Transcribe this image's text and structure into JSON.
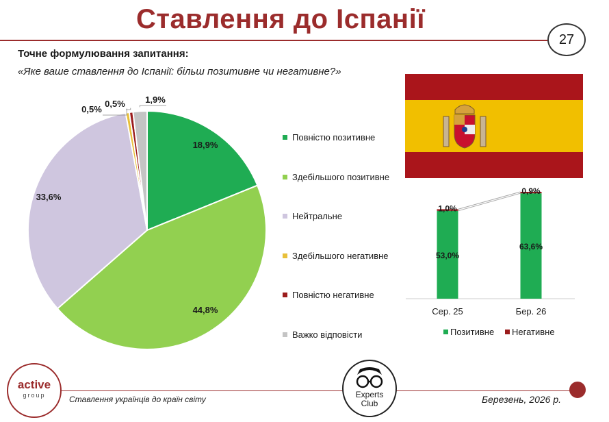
{
  "header": {
    "title": "Ставлення до Іспанії",
    "page_number": "27"
  },
  "question": {
    "label": "Точне формулювання запитання:",
    "text": "«Яке ваше ставлення до Іспанії: більш позитивне чи негативне?»"
  },
  "footer": {
    "left_text": "Ставлення українців до країн світу",
    "right_text": "Березень, 2026 р.",
    "logo_active": {
      "word": "active",
      "sub": "group"
    },
    "logo_experts": {
      "line1": "Experts",
      "line2": "Club"
    }
  },
  "colors": {
    "accent": "#9b2c2c",
    "fully_positive": "#1fac53",
    "mostly_positive": "#92d050",
    "neutral": "#cfc6df",
    "mostly_negative": "#e8c03a",
    "fully_negative": "#9b1c1c",
    "hard_to_say": "#c4c4c4",
    "flag_red": "#aa151b",
    "flag_yellow": "#f1bf00"
  },
  "chart_data": [
    {
      "type": "pie",
      "categories": [
        "Повністю позитивне",
        "Здебільшого позитивне",
        "Нейтральне",
        "Здебільшого негативне",
        "Повністю негативне",
        "Важко відповісти"
      ],
      "values": [
        18.9,
        44.8,
        33.6,
        0.5,
        0.5,
        1.9
      ],
      "data_labels": [
        "18,9%",
        "44,8%",
        "33,6%",
        "0,5%",
        "0,5%",
        "1,9%"
      ],
      "legend_position": "right"
    },
    {
      "type": "bar",
      "stacked": true,
      "categories": [
        "Сер. 25",
        "Бер. 26"
      ],
      "series": [
        {
          "name": "Позитивне",
          "values": [
            53.0,
            63.6
          ],
          "labels": [
            "53,0%",
            "63,6%"
          ]
        },
        {
          "name": "Негативне",
          "values": [
            1.0,
            0.9
          ],
          "labels": [
            "1,0%",
            "0,9%"
          ]
        }
      ],
      "legend_position": "bottom"
    }
  ]
}
